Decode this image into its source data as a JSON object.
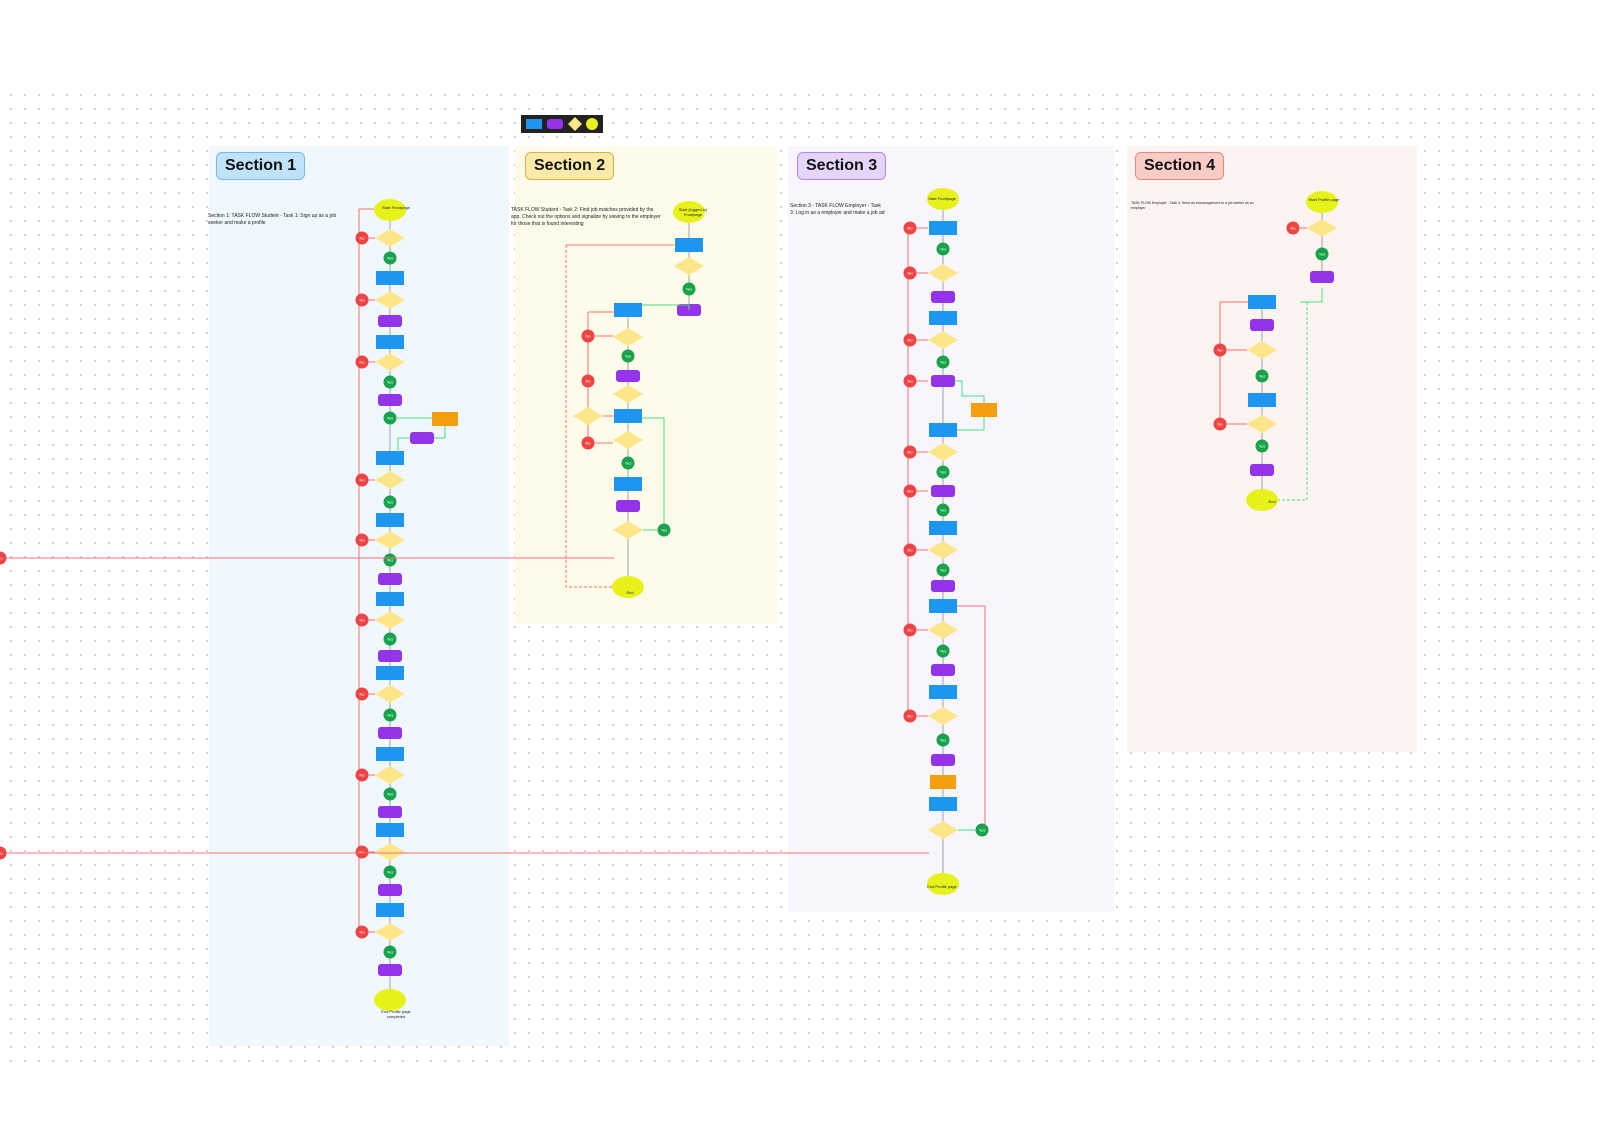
{
  "colors": {
    "process": "#1e96f0",
    "action": "#9333ea",
    "decision": "#fde68a",
    "yes": "#16a34a",
    "no": "#ef4444",
    "terminal": "#e6f21a",
    "external": "#f59e0b",
    "line_red": "#f87171",
    "line_green": "#4ade80"
  },
  "sections": [
    {
      "title": "Section 1",
      "description": "Section 1: TASK FLOW Student - Task 1: Sign up as a job seeker and make a profile",
      "start": "Start Frontpage",
      "end": "End Profile page completed"
    },
    {
      "title": "Section 2",
      "description": "TASK FLOW Student - Task 2: Find job matches provided by the app. Check out the options and signalize by waving to the employer for those that is found interesting",
      "start": "Start (logged in) Frontpage",
      "end": "End"
    },
    {
      "title": "Section 3",
      "description": "Section 3 - TASK FLOW Employer - Task 3: Log in as a employer and make a job ad",
      "start": "Start Frontpage",
      "end": "End Profile page"
    },
    {
      "title": "Section 4",
      "description": "TASK FLOW Employer - Task 4: Send an encouragement to a job seeker as an employer",
      "start": "Start Profile page",
      "end": "End"
    }
  ],
  "labels": {
    "yes": "Yes",
    "no": "No"
  }
}
